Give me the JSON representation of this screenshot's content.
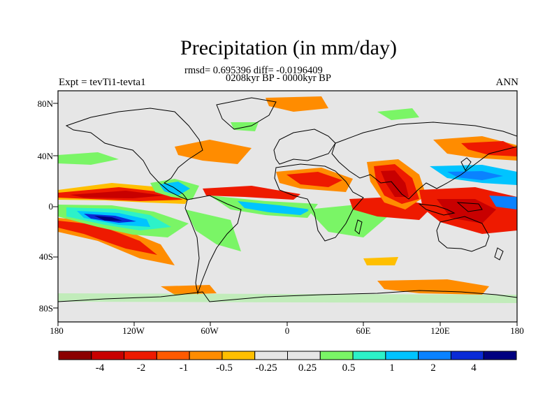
{
  "header": {
    "title": "Precipitation (in mm/day)",
    "stats_line": "rmsd= 0.695396 diff= -0.0196409",
    "period_line": "0208kyr BP - 0000kyr BP",
    "experiment_label": "Expt = tevTi1-tevta1",
    "season_label": "ANN"
  },
  "axes": {
    "y_ticks": [
      "80N",
      "40N",
      "0",
      "40S",
      "80S"
    ],
    "x_ticks": [
      "180",
      "120W",
      "60W",
      "0",
      "60E",
      "120E",
      "180"
    ]
  },
  "colorbar": {
    "colors": [
      "#8b0000",
      "#c80000",
      "#ee1a00",
      "#ff5a00",
      "#ff8c00",
      "#ffbf00",
      "#e6e6e6",
      "#e6e6e6",
      "#7af566",
      "#2df2c8",
      "#00c4ff",
      "#0a82ff",
      "#0a2bd6",
      "#000080"
    ],
    "labels": [
      "-4",
      "-2",
      "-1",
      "-0.5",
      "-0.25",
      "0.25",
      "0.5",
      "1",
      "2",
      "4"
    ]
  },
  "map": {
    "background_color": "#e6e6e6",
    "coast_color": "#000000"
  }
}
